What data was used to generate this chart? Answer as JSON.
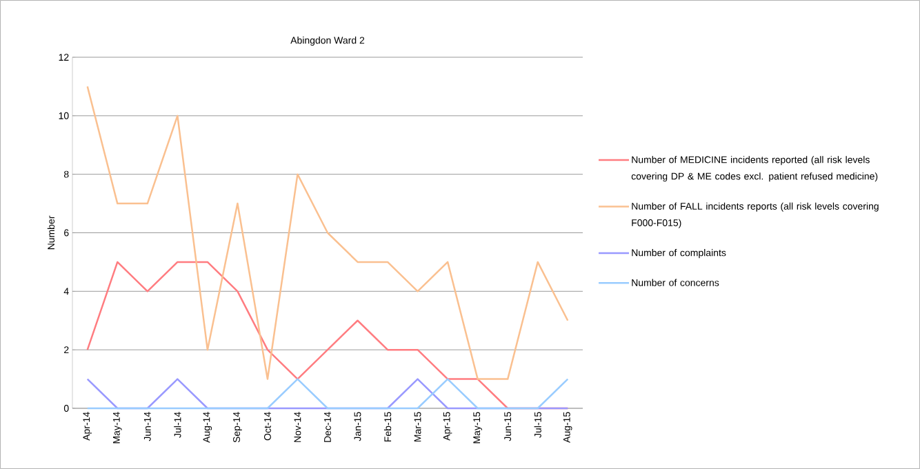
{
  "chart_data": {
    "type": "line",
    "title": "Abingdon Ward 2",
    "ylabel": "Number",
    "categories": [
      "Apr-14",
      "May-14",
      "Jun-14",
      "Jul-14",
      "Aug-14",
      "Sep-14",
      "Oct-14",
      "Nov-14",
      "Dec-14",
      "Jan-15",
      "Feb-15",
      "Mar-15",
      "Apr-15",
      "May-15",
      "Jun-15",
      "Jul-15",
      "Aug-15"
    ],
    "series": [
      {
        "name": "Number of MEDICINE incidents reported (all risk levels covering DP & ME codes excl. patient refused medicine)",
        "color": "#ff7c80",
        "values": [
          2,
          5,
          4,
          5,
          5,
          4,
          2,
          1,
          2,
          3,
          2,
          2,
          1,
          1,
          0,
          0,
          0
        ]
      },
      {
        "name": "Number of FALL incidents reports (all risk levels covering F000-F015)",
        "color": "#fac090",
        "values": [
          11,
          7,
          7,
          10,
          2,
          7,
          1,
          8,
          6,
          5,
          5,
          4,
          5,
          1,
          1,
          5,
          3
        ]
      },
      {
        "name": "Number of complaints",
        "color": "#9999ff",
        "values": [
          1,
          0,
          0,
          1,
          0,
          0,
          0,
          0,
          0,
          0,
          0,
          1,
          0,
          0,
          0,
          0,
          0
        ]
      },
      {
        "name": "Number of concerns",
        "color": "#99ccff",
        "values": [
          0,
          0,
          0,
          0,
          0,
          0,
          0,
          1,
          0,
          0,
          0,
          0,
          1,
          0,
          0,
          0,
          1
        ]
      }
    ],
    "ylim": [
      0,
      12
    ],
    "yticks": [
      0,
      2,
      4,
      6,
      8,
      10,
      12
    ],
    "grid": "y",
    "legend": "right",
    "marker": "none",
    "line_style": "solid"
  }
}
